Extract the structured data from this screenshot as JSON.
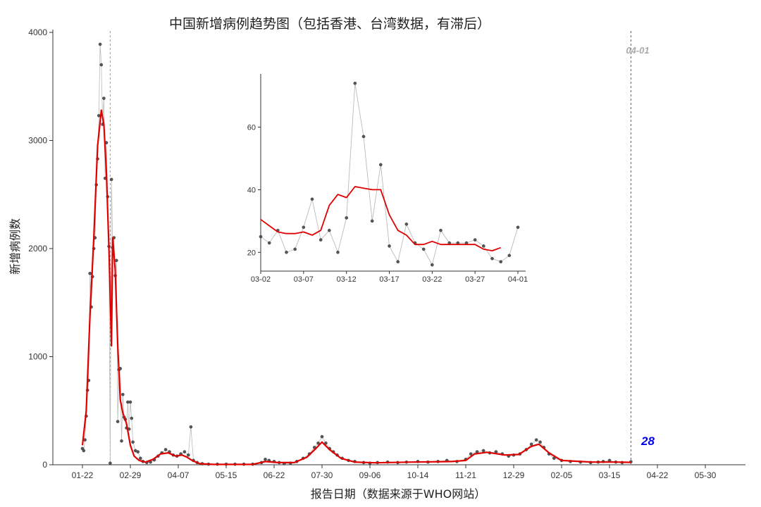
{
  "chart_data": [
    {
      "type": "line",
      "title": "中国新增病例趋势图（包括香港、台湾数据，有滞后）",
      "xlabel": "报告日期（数据来源于WHO网站）",
      "ylabel": "新增病例数",
      "x_ticks": [
        "01-22",
        "02-29",
        "04-07",
        "05-15",
        "06-22",
        "07-30",
        "09-06",
        "10-14",
        "11-21",
        "12-29",
        "02-05",
        "03-15",
        "04-22",
        "05-30"
      ],
      "y_ticks": [
        "0",
        "1000",
        "2000",
        "3000",
        "4000"
      ],
      "ylim": [
        0,
        4000
      ],
      "grid": false,
      "colors": {
        "points": "#555555",
        "raw_line": "#bbbbbb",
        "smooth": "#e00000",
        "ref_line_gray": "#999999",
        "ref_line_blue": "#4a4aff",
        "annotation_blue": "#0000ee",
        "annotation_gray": "#aaaaaa"
      },
      "reference_lines": [
        {
          "date": "2020-02-13",
          "label": ""
        },
        {
          "date": "2021-04-01",
          "label": "04-01"
        }
      ],
      "latest_value": {
        "date": "2021-04-01",
        "value": 28,
        "label": "28"
      },
      "series": [
        {
          "points": [
            [
              "2020-01-22",
              150
            ],
            [
              "2020-01-23",
              130
            ],
            [
              "2020-01-24",
              230
            ],
            [
              "2020-01-25",
              450
            ],
            [
              "2020-01-26",
              690
            ],
            [
              "2020-01-27",
              780
            ],
            [
              "2020-01-28",
              1770
            ],
            [
              "2020-01-29",
              1460
            ],
            [
              "2020-01-30",
              1740
            ],
            [
              "2020-01-31",
              2000
            ],
            [
              "2020-02-01",
              2100
            ],
            [
              "2020-02-02",
              2590
            ],
            [
              "2020-02-03",
              2830
            ],
            [
              "2020-02-04",
              3230
            ],
            [
              "2020-02-05",
              3890
            ],
            [
              "2020-02-06",
              3700
            ],
            [
              "2020-02-07",
              3150
            ],
            [
              "2020-02-08",
              3390
            ],
            [
              "2020-02-09",
              2650
            ],
            [
              "2020-02-10",
              2980
            ],
            [
              "2020-02-11",
              2480
            ],
            [
              "2020-02-12",
              2020
            ],
            [
              "2020-02-13",
              15
            ],
            [
              "2020-02-14",
              2640
            ],
            [
              "2020-02-15",
              2010
            ],
            [
              "2020-02-16",
              2100
            ],
            [
              "2020-02-17",
              1750
            ],
            [
              "2020-02-18",
              1890
            ],
            [
              "2020-02-19",
              400
            ],
            [
              "2020-02-20",
              880
            ],
            [
              "2020-02-21",
              890
            ],
            [
              "2020-02-22",
              220
            ],
            [
              "2020-02-23",
              650
            ],
            [
              "2020-02-24",
              440
            ],
            [
              "2020-02-25",
              420
            ],
            [
              "2020-02-26",
              340
            ],
            [
              "2020-02-27",
              580
            ],
            [
              "2020-02-28",
              330
            ],
            [
              "2020-02-29",
              580
            ],
            [
              "2020-03-01",
              430
            ],
            [
              "2020-03-02",
              210
            ],
            [
              "2020-03-04",
              130
            ],
            [
              "2020-03-06",
              120
            ],
            [
              "2020-03-08",
              60
            ],
            [
              "2020-03-10",
              30
            ],
            [
              "2020-03-13",
              20
            ],
            [
              "2020-03-16",
              25
            ],
            [
              "2020-03-19",
              45
            ],
            [
              "2020-03-22",
              80
            ],
            [
              "2020-03-25",
              110
            ],
            [
              "2020-03-28",
              140
            ],
            [
              "2020-03-31",
              120
            ],
            [
              "2020-04-03",
              90
            ],
            [
              "2020-04-06",
              80
            ],
            [
              "2020-04-09",
              100
            ],
            [
              "2020-04-12",
              120
            ],
            [
              "2020-04-15",
              90
            ],
            [
              "2020-04-17",
              350
            ],
            [
              "2020-04-19",
              40
            ],
            [
              "2020-04-22",
              20
            ],
            [
              "2020-04-26",
              10
            ],
            [
              "2020-05-01",
              5
            ],
            [
              "2020-05-08",
              5
            ],
            [
              "2020-05-15",
              5
            ],
            [
              "2020-05-22",
              5
            ],
            [
              "2020-05-29",
              5
            ],
            [
              "2020-06-05",
              5
            ],
            [
              "2020-06-12",
              20
            ],
            [
              "2020-06-15",
              50
            ],
            [
              "2020-06-18",
              40
            ],
            [
              "2020-06-22",
              30
            ],
            [
              "2020-06-26",
              20
            ],
            [
              "2020-06-30",
              10
            ],
            [
              "2020-07-05",
              15
            ],
            [
              "2020-07-10",
              30
            ],
            [
              "2020-07-15",
              60
            ],
            [
              "2020-07-20",
              100
            ],
            [
              "2020-07-24",
              160
            ],
            [
              "2020-07-27",
              200
            ],
            [
              "2020-07-30",
              260
            ],
            [
              "2020-08-02",
              200
            ],
            [
              "2020-08-05",
              150
            ],
            [
              "2020-08-08",
              120
            ],
            [
              "2020-08-11",
              90
            ],
            [
              "2020-08-15",
              60
            ],
            [
              "2020-08-20",
              40
            ],
            [
              "2020-08-25",
              30
            ],
            [
              "2020-09-01",
              20
            ],
            [
              "2020-09-06",
              15
            ],
            [
              "2020-09-12",
              20
            ],
            [
              "2020-09-20",
              25
            ],
            [
              "2020-09-28",
              20
            ],
            [
              "2020-10-05",
              25
            ],
            [
              "2020-10-14",
              30
            ],
            [
              "2020-10-22",
              25
            ],
            [
              "2020-10-30",
              30
            ],
            [
              "2020-11-06",
              40
            ],
            [
              "2020-11-14",
              30
            ],
            [
              "2020-11-21",
              50
            ],
            [
              "2020-11-25",
              100
            ],
            [
              "2020-11-30",
              120
            ],
            [
              "2020-12-05",
              130
            ],
            [
              "2020-12-10",
              110
            ],
            [
              "2020-12-15",
              120
            ],
            [
              "2020-12-20",
              100
            ],
            [
              "2020-12-25",
              80
            ],
            [
              "2020-12-29",
              90
            ],
            [
              "2021-01-03",
              100
            ],
            [
              "2021-01-08",
              140
            ],
            [
              "2021-01-12",
              190
            ],
            [
              "2021-01-16",
              230
            ],
            [
              "2021-01-19",
              210
            ],
            [
              "2021-01-22",
              160
            ],
            [
              "2021-01-26",
              100
            ],
            [
              "2021-01-30",
              60
            ],
            [
              "2021-02-05",
              40
            ],
            [
              "2021-02-12",
              30
            ],
            [
              "2021-02-20",
              25
            ],
            [
              "2021-02-28",
              20
            ],
            [
              "2021-03-06",
              25
            ],
            [
              "2021-03-10",
              30
            ],
            [
              "2021-03-15",
              40
            ],
            [
              "2021-03-20",
              25
            ],
            [
              "2021-03-25",
              20
            ],
            [
              "2021-04-01",
              28
            ]
          ],
          "smooth": [
            [
              "2020-01-22",
              180
            ],
            [
              "2020-01-25",
              500
            ],
            [
              "2020-01-28",
              1380
            ],
            [
              "2020-01-31",
              2100
            ],
            [
              "2020-02-03",
              2950
            ],
            [
              "2020-02-06",
              3280
            ],
            [
              "2020-02-08",
              3150
            ],
            [
              "2020-02-10",
              2700
            ],
            [
              "2020-02-12",
              2000
            ],
            [
              "2020-02-14",
              1100
            ],
            [
              "2020-02-15",
              2100
            ],
            [
              "2020-02-17",
              1800
            ],
            [
              "2020-02-19",
              1100
            ],
            [
              "2020-02-21",
              600
            ],
            [
              "2020-02-23",
              480
            ],
            [
              "2020-02-26",
              380
            ],
            [
              "2020-02-29",
              180
            ],
            [
              "2020-03-03",
              80
            ],
            [
              "2020-03-07",
              40
            ],
            [
              "2020-03-12",
              25
            ],
            [
              "2020-03-18",
              50
            ],
            [
              "2020-03-24",
              100
            ],
            [
              "2020-03-30",
              110
            ],
            [
              "2020-04-05",
              80
            ],
            [
              "2020-04-10",
              90
            ],
            [
              "2020-04-14",
              70
            ],
            [
              "2020-04-18",
              40
            ],
            [
              "2020-04-24",
              10
            ],
            [
              "2020-05-05",
              3
            ],
            [
              "2020-06-05",
              3
            ],
            [
              "2020-06-15",
              30
            ],
            [
              "2020-06-25",
              20
            ],
            [
              "2020-07-08",
              20
            ],
            [
              "2020-07-18",
              70
            ],
            [
              "2020-07-26",
              160
            ],
            [
              "2020-07-30",
              210
            ],
            [
              "2020-08-05",
              140
            ],
            [
              "2020-08-14",
              60
            ],
            [
              "2020-08-25",
              25
            ],
            [
              "2020-09-10",
              18
            ],
            [
              "2020-10-10",
              25
            ],
            [
              "2020-11-10",
              30
            ],
            [
              "2020-11-21",
              40
            ],
            [
              "2020-11-28",
              100
            ],
            [
              "2020-12-08",
              115
            ],
            [
              "2020-12-22",
              90
            ],
            [
              "2021-01-02",
              95
            ],
            [
              "2021-01-12",
              170
            ],
            [
              "2021-01-18",
              190
            ],
            [
              "2021-01-26",
              110
            ],
            [
              "2021-02-05",
              40
            ],
            [
              "2021-03-01",
              25
            ],
            [
              "2021-03-20",
              25
            ],
            [
              "2021-04-01",
              22
            ]
          ]
        }
      ]
    },
    {
      "type": "line",
      "title": "",
      "xlabel": "",
      "ylabel": "",
      "x_ticks": [
        "03-02",
        "03-07",
        "03-12",
        "03-17",
        "03-22",
        "03-27",
        "04-01"
      ],
      "y_ticks": [
        "20",
        "40",
        "60"
      ],
      "ylim": [
        14,
        77
      ],
      "grid": false,
      "series": [
        {
          "x": [
            "03-02",
            "03-03",
            "03-04",
            "03-05",
            "03-06",
            "03-07",
            "03-08",
            "03-09",
            "03-10",
            "03-11",
            "03-12",
            "03-13",
            "03-14",
            "03-15",
            "03-16",
            "03-17",
            "03-18",
            "03-19",
            "03-20",
            "03-21",
            "03-22",
            "03-23",
            "03-24",
            "03-25",
            "03-26",
            "03-27",
            "03-28",
            "03-29",
            "03-30",
            "03-31",
            "04-01"
          ],
          "raw": [
            25,
            23,
            27,
            20,
            21,
            28,
            37,
            24,
            27,
            20,
            31,
            74,
            57,
            30,
            48,
            22,
            17,
            29,
            23,
            21,
            16,
            27,
            23,
            23,
            23,
            24,
            22,
            18,
            17,
            19,
            28
          ],
          "smooth": [
            30.5,
            28.5,
            26.5,
            26,
            26,
            26.5,
            25.5,
            27,
            35,
            38.5,
            37.5,
            41,
            40.5,
            40,
            40,
            32,
            27,
            25.5,
            22.5,
            22.5,
            23.5,
            22.5,
            22.5,
            22.5,
            22.5,
            22.5,
            21,
            20.5,
            21.5,
            null,
            null
          ]
        }
      ]
    }
  ]
}
